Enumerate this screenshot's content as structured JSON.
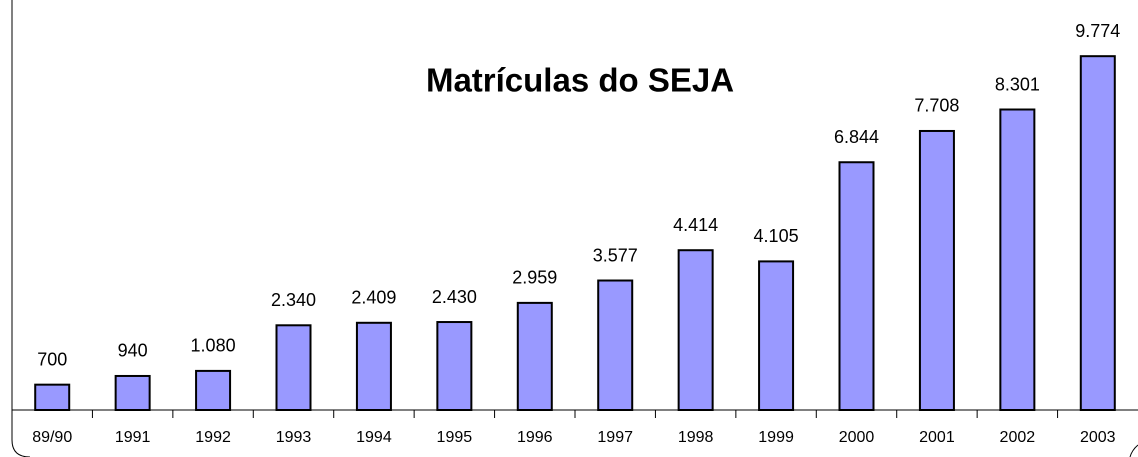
{
  "chart_data": {
    "type": "bar",
    "title": "Matrículas do SEJA",
    "categories": [
      "89/90",
      "1991",
      "1992",
      "1993",
      "1994",
      "1995",
      "1996",
      "1997",
      "1998",
      "1999",
      "2000",
      "2001",
      "2002",
      "2003"
    ],
    "values": [
      700,
      940,
      1080,
      2340,
      2409,
      2430,
      2959,
      3577,
      4414,
      4105,
      6844,
      7708,
      8301,
      9774
    ],
    "value_labels": [
      "700",
      "940",
      "1.080",
      "2.340",
      "2.409",
      "2.430",
      "2.959",
      "3.577",
      "4.414",
      "4.105",
      "6.844",
      "7.708",
      "8.301",
      "9.774"
    ],
    "color": "#9999ff",
    "ylim": [
      0,
      10000
    ]
  }
}
